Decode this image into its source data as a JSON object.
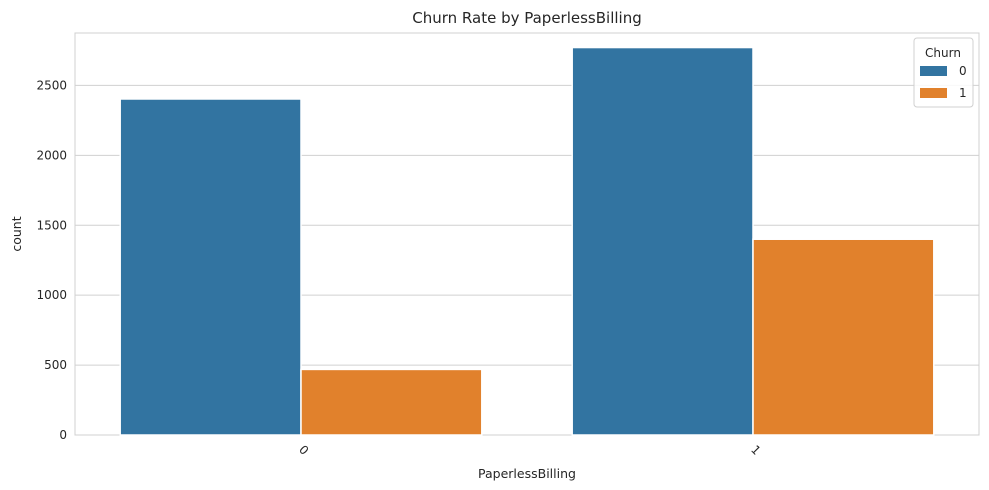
{
  "chart_data": {
    "type": "bar",
    "title": "Churn Rate by PaperlessBilling",
    "xlabel": "PaperlessBilling",
    "ylabel": "count",
    "categories": [
      "0",
      "1"
    ],
    "series": [
      {
        "name": "0",
        "values": [
          2403,
          2771
        ],
        "color": "#3274a1"
      },
      {
        "name": "1",
        "values": [
          469,
          1400
        ],
        "color": "#e1812c"
      }
    ],
    "ylim": [
      0,
      2875
    ],
    "yticks": [
      0,
      500,
      1000,
      1500,
      2000,
      2500
    ],
    "grid": true,
    "legend": {
      "title": "Churn",
      "placement": "top-right"
    }
  }
}
